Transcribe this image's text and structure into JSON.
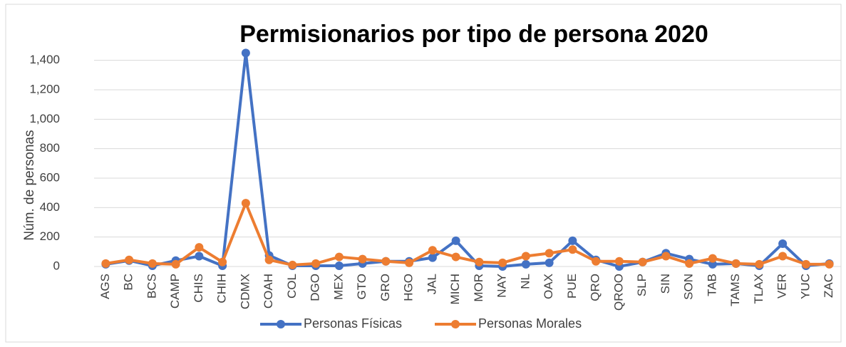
{
  "chart_data": {
    "type": "line",
    "title": "Permisionarios por tipo de persona 2020",
    "y_label": "Núm. de personas",
    "categories": [
      "AGS",
      "BC",
      "BCS",
      "CAMP",
      "CHIS",
      "CHIH",
      "CDMX",
      "COAH",
      "COL",
      "DGO",
      "MEX",
      "GTO",
      "GRO",
      "HGO",
      "JAL",
      "MICH",
      "MOR",
      "NAY",
      "NL",
      "OAX",
      "PUE",
      "QRO",
      "QROO",
      "SLP",
      "SIN",
      "SON",
      "TAB",
      "TAMS",
      "TLAX",
      "VER",
      "YUC",
      "ZAC"
    ],
    "series": [
      {
        "name": "Personas Físicas",
        "color": "#4472c4",
        "values": [
          15,
          40,
          5,
          40,
          70,
          5,
          1450,
          75,
          5,
          5,
          5,
          20,
          35,
          35,
          60,
          175,
          5,
          0,
          15,
          25,
          175,
          45,
          0,
          30,
          90,
          50,
          15,
          20,
          5,
          155,
          5,
          20
        ]
      },
      {
        "name": "Personas Morales",
        "color": "#ed7d31",
        "values": [
          20,
          45,
          20,
          15,
          130,
          30,
          430,
          45,
          10,
          20,
          65,
          50,
          35,
          25,
          110,
          65,
          30,
          25,
          70,
          90,
          115,
          35,
          35,
          30,
          70,
          20,
          55,
          20,
          15,
          70,
          15,
          15
        ]
      }
    ],
    "ylim": [
      0,
      1500
    ],
    "yticks": [
      0,
      200,
      400,
      600,
      800,
      {
        "value": 1000,
        "label": "1,000"
      },
      {
        "value": 1200,
        "label": "1,200"
      },
      {
        "value": 1400,
        "label": "1,400"
      }
    ],
    "grid": true,
    "legend": "bottom"
  }
}
